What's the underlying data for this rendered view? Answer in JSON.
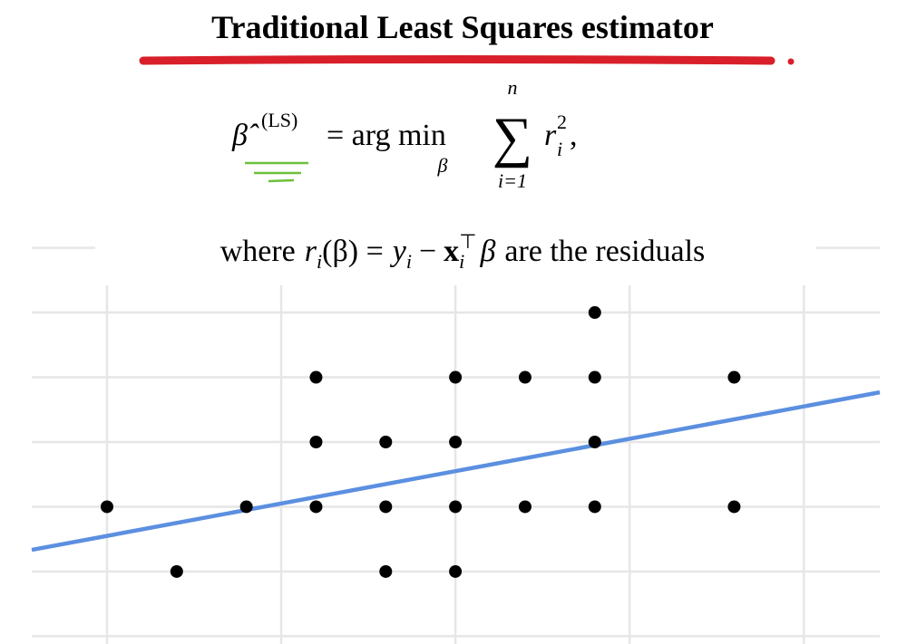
{
  "chart_data": {
    "type": "scatter",
    "title": "Traditional Least Squares estimator",
    "formula": [
      "β̂",
      "(LS)",
      "= arg min",
      "β",
      "∑",
      "n",
      "i=1",
      "r",
      "2",
      "i",
      ","
    ],
    "where": [
      "where",
      "r",
      "i",
      "(β) =",
      "y",
      "i",
      "−",
      "x",
      "i",
      "⊤",
      "β",
      "are the residuals"
    ],
    "x": [
      0,
      1,
      2,
      3,
      3,
      3,
      4,
      4,
      4,
      5,
      5,
      5,
      5,
      6,
      6,
      7,
      7,
      7,
      7,
      9,
      9
    ],
    "values": [
      1,
      0,
      1,
      3,
      2,
      1,
      2,
      1,
      0,
      3,
      2,
      1,
      0,
      3,
      1,
      4,
      3,
      2,
      1,
      3,
      1
    ],
    "color": "#000000",
    "fit": {
      "intercept": 0.55,
      "slope": 0.2,
      "color": "#5b8fe0"
    },
    "xlim": [
      -1.08,
      11.09
    ],
    "ylim": [
      -1.12,
      5.33
    ],
    "xticks": [
      0,
      2.5,
      5,
      7.5,
      10
    ],
    "yticks": [
      -1,
      0,
      1,
      2,
      3,
      4,
      5
    ],
    "grid": true
  }
}
